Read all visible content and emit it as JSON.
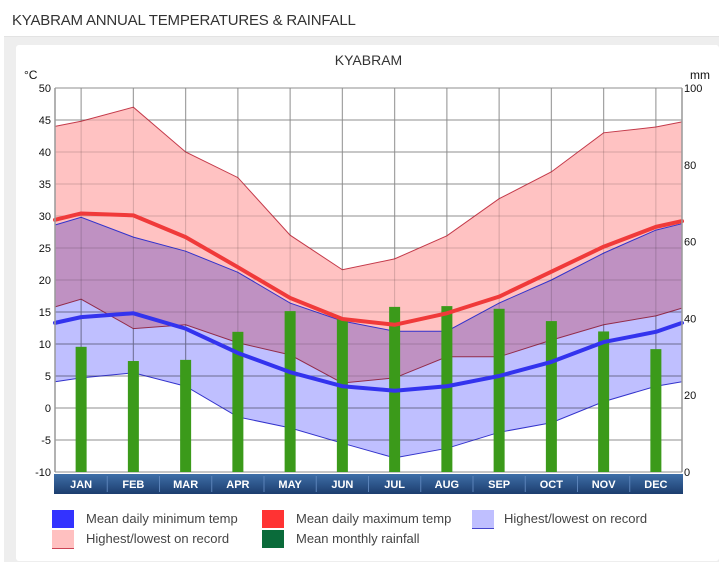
{
  "header": {
    "title": "KYABRAM ANNUAL TEMPERATURES & RAINFALL"
  },
  "chart_data": {
    "type": "line",
    "title": "KYABRAM",
    "xlabel": "",
    "ylabel": "°C",
    "y2label": "mm",
    "categories": [
      "JAN",
      "FEB",
      "MAR",
      "APR",
      "MAY",
      "JUN",
      "JUL",
      "AUG",
      "SEP",
      "OCT",
      "NOV",
      "DEC"
    ],
    "ylim": [
      -10,
      50
    ],
    "y_ticks": [
      50,
      45,
      40,
      35,
      30,
      25,
      20,
      15,
      10,
      5,
      0,
      -5,
      -10
    ],
    "y2lim": [
      0,
      100
    ],
    "y2_ticks": [
      100,
      80,
      60,
      40,
      20,
      0
    ],
    "grid": true,
    "legend_position": "bottom",
    "edge_values": {
      "record_high_max": [
        44.0,
        44.7
      ],
      "mean_max": [
        29.4,
        29.2
      ],
      "low_max": [
        15.8,
        15.6
      ],
      "high_min": [
        28.6,
        28.8
      ],
      "mean_min": [
        13.3,
        13.3
      ],
      "record_low_min": [
        4.1,
        4.1
      ]
    },
    "series": [
      {
        "name": "Highest/lowest on record (max temp) - highest",
        "key": "record_high_max",
        "color": "#ffbfbf",
        "values": [
          44.8,
          47.0,
          40.0,
          36.0,
          27.0,
          21.6,
          23.3,
          26.9,
          32.7,
          36.9,
          43.0,
          43.9
        ]
      },
      {
        "name": "Highest/lowest on record (max temp) - lowest",
        "key": "low_max",
        "color": "#ffbfbf",
        "values": [
          17.0,
          12.4,
          13.0,
          10.2,
          8.3,
          3.9,
          4.7,
          8.0,
          8.0,
          10.6,
          13.0,
          14.4
        ]
      },
      {
        "name": "Mean daily maximum temp",
        "key": "mean_max",
        "color": "#f03a3a",
        "values": [
          30.4,
          30.1,
          26.7,
          22.0,
          17.2,
          13.9,
          13.0,
          14.8,
          17.4,
          21.3,
          25.2,
          28.3
        ]
      },
      {
        "name": "Highest/lowest on record (min temp) - highest",
        "key": "high_min",
        "color": "#bfbfff",
        "values": [
          29.8,
          26.7,
          24.5,
          21.2,
          16.4,
          13.6,
          12.0,
          12.0,
          16.4,
          20.0,
          24.2,
          27.8
        ]
      },
      {
        "name": "Highest/lowest on record (min temp) - lowest",
        "key": "record_low_min",
        "color": "#bfbfff",
        "values": [
          4.7,
          5.5,
          3.4,
          -1.4,
          -3.1,
          -5.5,
          -7.8,
          -6.3,
          -3.8,
          -2.3,
          1.0,
          3.4
        ]
      },
      {
        "name": "Mean daily minimum temp",
        "key": "mean_min",
        "color": "#3333ee",
        "values": [
          14.2,
          14.8,
          12.4,
          8.6,
          5.6,
          3.4,
          2.7,
          3.4,
          5.0,
          7.2,
          10.3,
          11.9
        ]
      },
      {
        "name": "Mean monthly rainfall",
        "key": "rainfall",
        "color": "#3b9a1a",
        "axis": "y2",
        "values": [
          32.6,
          28.9,
          29.2,
          36.5,
          41.9,
          40.1,
          43.0,
          43.2,
          42.5,
          39.3,
          36.6,
          32.0
        ]
      }
    ],
    "legend": [
      {
        "label": "Mean daily minimum temp",
        "color": "#3333ff",
        "icon": "blue-square"
      },
      {
        "label": "Mean daily maximum temp",
        "color": "#ff3333",
        "icon": "red-square"
      },
      {
        "label": "Highest/lowest on record",
        "color": "#bfbfff",
        "icon": "lavender-square"
      },
      {
        "label": "Highest/lowest on record",
        "color": "#ffc0c0",
        "icon": "pink-square"
      },
      {
        "label": "Mean monthly rainfall",
        "color": "#0a6b3a",
        "icon": "green-square"
      }
    ]
  }
}
